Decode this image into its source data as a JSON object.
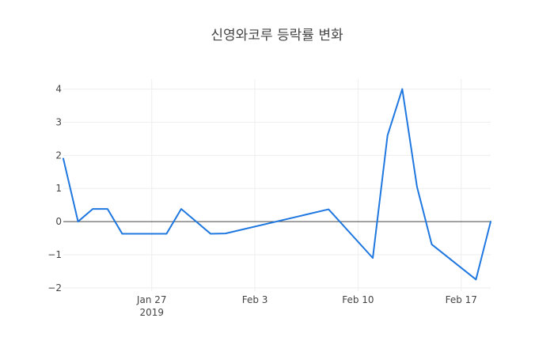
{
  "chart_data": {
    "type": "line",
    "title": "신영와코루 등락률 변화",
    "xlabel": "",
    "ylabel": "",
    "ylim": [
      -2.1,
      4.3
    ],
    "xlim": [
      "2019-01-21",
      "2019-02-19"
    ],
    "grid": true,
    "zeroline": true,
    "line_color": "#1f77e0",
    "x_ticks": [
      {
        "date": "2019-01-27",
        "label": "Jan 27",
        "sublabel": "2019"
      },
      {
        "date": "2019-02-03",
        "label": "Feb 3",
        "sublabel": ""
      },
      {
        "date": "2019-02-10",
        "label": "Feb 10",
        "sublabel": ""
      },
      {
        "date": "2019-02-17",
        "label": "Feb 17",
        "sublabel": ""
      }
    ],
    "y_ticks": [
      {
        "value": 4,
        "label": "4"
      },
      {
        "value": 3,
        "label": "3"
      },
      {
        "value": 2,
        "label": "2"
      },
      {
        "value": 1,
        "label": "1"
      },
      {
        "value": 0,
        "label": "0"
      },
      {
        "value": -1,
        "label": "−1"
      },
      {
        "value": -2,
        "label": "−2"
      }
    ],
    "series": [
      {
        "x": [
          "2019-01-21",
          "2019-01-22",
          "2019-01-23",
          "2019-01-24",
          "2019-01-25",
          "2019-01-28",
          "2019-01-29",
          "2019-01-31",
          "2019-02-01",
          "2019-02-08",
          "2019-02-11",
          "2019-02-12",
          "2019-02-13",
          "2019-02-14",
          "2019-02-15",
          "2019-02-18",
          "2019-02-19"
        ],
        "y": [
          1.9,
          0.0,
          0.38,
          0.38,
          -0.37,
          -0.37,
          0.38,
          -0.37,
          -0.36,
          0.37,
          -1.1,
          2.6,
          4.0,
          1.05,
          -0.69,
          -1.75,
          0.0
        ]
      }
    ]
  }
}
